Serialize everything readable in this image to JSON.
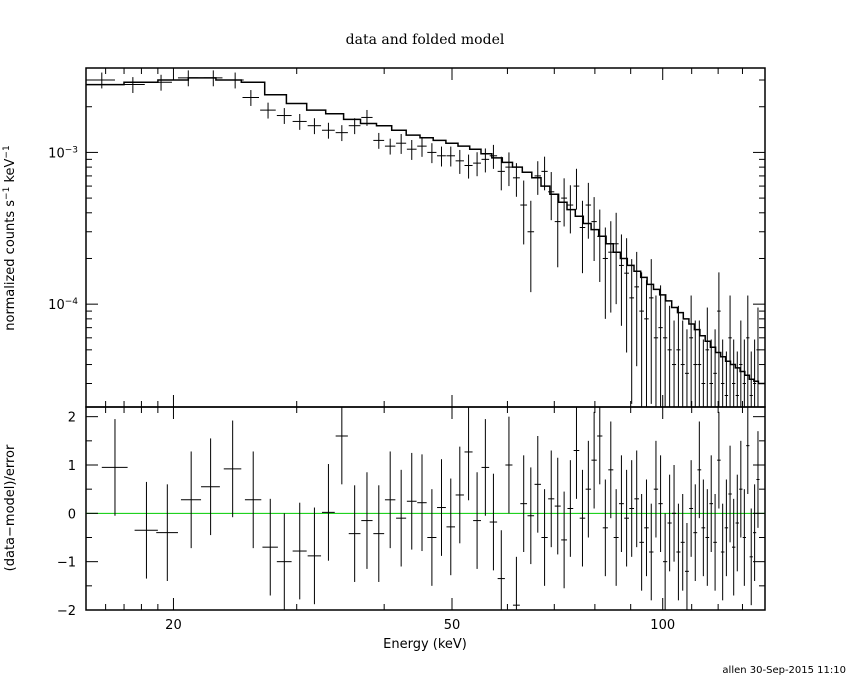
{
  "chart_data": [
    {
      "type": "line",
      "panel": "top",
      "title": "data and folded model",
      "xlabel": "Energy (keV)",
      "ylabel": "normalized counts s",
      "ylabel_sup1": "−1",
      "ylabel_mid": " keV",
      "ylabel_sup2": "−1",
      "xscale": "log",
      "yscale": "log",
      "xlim": [
        15,
        140
      ],
      "ylim": [
        2.1e-05,
        0.0036
      ],
      "yticks": [
        {
          "value": 0.001,
          "base": "10",
          "exp": "−3"
        },
        {
          "value": 0.0001,
          "base": "10",
          "exp": "−4"
        }
      ],
      "grid": false,
      "series": [
        {
          "kind": "data-with-errors",
          "x": [
            15.8,
            17.5,
            19.2,
            21.0,
            22.8,
            24.5,
            25.8,
            27.3,
            28.8,
            30.3,
            31.8,
            33.3,
            34.8,
            36.3,
            37.8,
            39.3,
            40.8,
            42.3,
            43.8,
            45.3,
            46.8,
            48.3,
            49.8,
            51.3,
            52.8,
            54.3,
            55.8,
            57.3,
            58.8,
            60.3,
            61.8,
            63.3,
            64.8,
            66.3,
            67.8,
            69.3,
            70.8,
            72.3,
            73.8,
            75.3,
            76.8,
            78.3,
            79.8,
            81.3,
            82.8,
            84.3,
            85.8,
            87.3,
            88.8,
            90.3,
            91.8,
            93.3,
            94.8,
            96.3,
            97.8,
            99.3,
            100.8,
            102.3,
            103.8,
            105.3,
            106.8,
            108.3,
            109.8,
            111.3,
            112.8,
            114.3,
            115.8,
            117.3,
            118.8,
            120.3,
            121.8,
            123.3,
            124.8,
            126.3,
            127.8,
            129.3,
            130.8,
            132.3,
            133.8,
            135.3,
            136.8
          ],
          "y": [
            0.003,
            0.0028,
            0.0029,
            0.0031,
            0.0031,
            0.003,
            0.0023,
            0.0019,
            0.00175,
            0.0016,
            0.0015,
            0.0014,
            0.00135,
            0.0015,
            0.0017,
            0.0012,
            0.0011,
            0.00115,
            0.00105,
            0.0011,
            0.001,
            0.00095,
            0.00095,
            0.00088,
            0.00082,
            0.00085,
            0.0009,
            0.00095,
            0.00075,
            0.0008,
            0.00068,
            0.00045,
            0.0003,
            0.0007,
            0.00075,
            0.00055,
            0.00035,
            0.0005,
            0.00045,
            0.0006,
            0.00032,
            0.00045,
            0.00035,
            0.00028,
            0.0002,
            0.00022,
            0.00025,
            0.00018,
            0.00016,
            0.00011,
            0.00013,
            9e-05,
            8e-05,
            0.00011,
            6e-05,
            7e-05,
            6e-05,
            5e-05,
            4e-05,
            5e-05,
            4e-05,
            3.5e-05,
            6e-05,
            4e-05,
            4e-05,
            3e-05,
            5e-05,
            3e-05,
            3.5e-05,
            9e-05,
            3e-05,
            2.5e-05,
            6e-05,
            3e-05,
            2.5e-05,
            4e-05,
            3e-05,
            6e-05,
            2.5e-05,
            3e-05,
            5e-05
          ],
          "xerr": 0.7,
          "yerr_frac": [
            0.12,
            0.12,
            0.12,
            0.12,
            0.12,
            0.12,
            0.12,
            0.12,
            0.12,
            0.12,
            0.12,
            0.12,
            0.12,
            0.12,
            0.12,
            0.12,
            0.12,
            0.15,
            0.15,
            0.15,
            0.15,
            0.15,
            0.15,
            0.18,
            0.18,
            0.18,
            0.18,
            0.18,
            0.25,
            0.25,
            0.25,
            0.45,
            0.6,
            0.25,
            0.25,
            0.35,
            0.5,
            0.35,
            0.35,
            0.3,
            0.5,
            0.4,
            0.45,
            0.5,
            0.6,
            0.6,
            0.6,
            0.6,
            0.7,
            0.8,
            0.7,
            0.8,
            0.8,
            0.8,
            0.9,
            0.9,
            0.9,
            0.95,
            0.95,
            0.95,
            0.95,
            0.95,
            0.9,
            0.95,
            0.95,
            0.95,
            0.9,
            0.95,
            0.95,
            0.8,
            0.95,
            0.95,
            0.9,
            0.95,
            0.95,
            0.95,
            0.95,
            0.9,
            0.95,
            0.95,
            0.9
          ]
        },
        {
          "kind": "model-histogram",
          "edges": [
            15,
            17,
            19,
            21,
            23,
            25,
            27,
            29,
            31,
            33,
            35,
            37,
            39,
            41,
            43,
            45,
            47,
            49,
            51,
            53,
            55,
            57,
            59,
            61,
            63,
            65,
            67,
            69,
            71,
            73,
            75,
            77,
            79,
            81,
            83,
            85,
            87,
            89,
            91,
            93,
            95,
            97,
            99,
            101,
            103,
            105,
            107,
            109,
            111,
            113,
            115,
            117,
            119,
            121,
            123,
            125,
            127,
            129,
            131,
            133,
            135,
            137,
            140
          ],
          "values": [
            0.0028,
            0.0029,
            0.003,
            0.0031,
            0.003,
            0.0029,
            0.0024,
            0.0021,
            0.0019,
            0.0018,
            0.00165,
            0.00155,
            0.0015,
            0.0014,
            0.0013,
            0.00125,
            0.0012,
            0.00115,
            0.0011,
            0.00105,
            0.00098,
            0.00092,
            0.00086,
            0.0008,
            0.00074,
            0.00068,
            0.0006,
            0.00053,
            0.00047,
            0.00042,
            0.00038,
            0.00034,
            0.00031,
            0.00028,
            0.00025,
            0.00022,
            0.0002,
            0.00018,
            0.000165,
            0.00015,
            0.000135,
            0.000125,
            0.000115,
            0.000105,
            9.5e-05,
            8.8e-05,
            8e-05,
            7.4e-05,
            6.8e-05,
            6.2e-05,
            5.7e-05,
            5.2e-05,
            4.8e-05,
            4.5e-05,
            4.2e-05,
            4e-05,
            3.8e-05,
            3.6e-05,
            3.4e-05,
            3.2e-05,
            3.1e-05,
            3e-05
          ]
        }
      ]
    },
    {
      "type": "scatter",
      "panel": "bottom",
      "xlabel": "Energy (keV)",
      "ylabel": "(data−model)/error",
      "xscale": "log",
      "xlim": [
        15,
        140
      ],
      "ylim": [
        -2,
        2.2
      ],
      "yticks": [
        2,
        1,
        0,
        -1,
        -2
      ],
      "yticklabels": [
        "2",
        "1",
        "0",
        "−1",
        "−2"
      ],
      "xticks": [
        20,
        50,
        100
      ],
      "xticklabels": [
        "20",
        "50",
        "100"
      ],
      "zero_line_color": "#00cc00",
      "series": [
        {
          "x": [
            16.5,
            18.3,
            19.6,
            21.2,
            22.6,
            24.3,
            26.0,
            27.5,
            28.8,
            30.3,
            31.8,
            33.3,
            34.8,
            36.3,
            37.8,
            39.3,
            40.8,
            42.3,
            43.8,
            45.3,
            46.8,
            48.3,
            49.8,
            51.3,
            52.8,
            54.3,
            55.8,
            57.3,
            58.8,
            60.3,
            61.8,
            63.3,
            64.8,
            66.3,
            67.8,
            69.3,
            70.8,
            72.3,
            73.8,
            75.3,
            76.8,
            78.3,
            79.8,
            81.3,
            82.8,
            84.3,
            85.8,
            87.3,
            88.8,
            90.3,
            91.8,
            93.3,
            94.8,
            96.3,
            97.8,
            99.3,
            100.8,
            102.3,
            103.8,
            105.3,
            106.8,
            108.3,
            109.8,
            111.3,
            112.8,
            114.3,
            115.8,
            117.3,
            118.8,
            120.3,
            121.8,
            123.3,
            124.8,
            126.3,
            127.8,
            129.3,
            130.8,
            132.3,
            133.8,
            135.3,
            136.8
          ],
          "y": [
            0.95,
            -0.35,
            -0.4,
            0.28,
            0.55,
            0.92,
            0.28,
            -0.7,
            -1.0,
            -0.78,
            -0.88,
            0.02,
            1.6,
            -0.42,
            -0.15,
            -0.42,
            0.28,
            -0.1,
            0.25,
            0.22,
            -0.5,
            0.12,
            -0.28,
            0.38,
            1.27,
            -0.15,
            0.95,
            -0.18,
            -1.35,
            1.0,
            -1.9,
            0.2,
            -0.05,
            0.6,
            -0.5,
            0.3,
            0.15,
            -0.55,
            0.1,
            1.3,
            -0.1,
            0.5,
            1.1,
            1.6,
            -0.3,
            0.9,
            -0.5,
            0.2,
            -0.1,
            0.1,
            0.3,
            -0.6,
            -0.3,
            -0.8,
            0.5,
            0.2,
            -1.0,
            -0.2,
            0.0,
            -0.8,
            -0.6,
            -1.2,
            0.1,
            -0.4,
            0.9,
            -0.3,
            -0.5,
            0.2,
            -0.6,
            1.1,
            -0.8,
            -0.3,
            0.4,
            -0.7,
            -0.2,
            0.5,
            -0.5,
            1.4,
            -0.9,
            -0.4,
            0.7
          ],
          "xerr": 0.7,
          "yerr": 1.0
        }
      ]
    }
  ],
  "footer": {
    "stamp": "allen 30-Sep-2015 11:10"
  }
}
